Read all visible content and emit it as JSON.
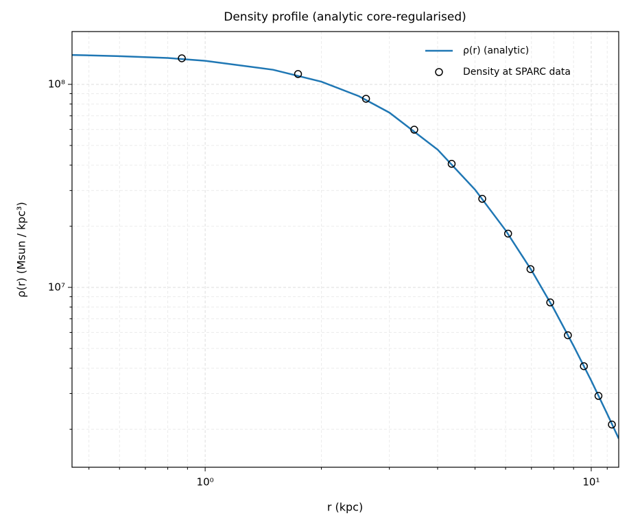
{
  "chart_data": {
    "type": "line",
    "title": "Density profile (analytic core-regularised)",
    "xlabel": "r (kpc)",
    "ylabel": "ρ(r) (Msun / kpc³)",
    "xscale": "log",
    "yscale": "log",
    "xlim": [
      0.452,
      11.78
    ],
    "ylim": [
      1300000,
      182000000
    ],
    "xticks": [
      {
        "value": 1,
        "label": "10⁰"
      },
      {
        "value": 10,
        "label": "10¹"
      }
    ],
    "xminorticks": [
      0.5,
      0.6,
      0.7,
      0.8,
      0.9,
      2,
      3,
      4,
      5,
      6,
      7,
      8,
      9,
      11
    ],
    "yticks": [
      {
        "value": 10000000,
        "label": "10⁷"
      },
      {
        "value": 100000000,
        "label": "10⁸"
      }
    ],
    "yminorticks": [
      2000000,
      3000000,
      4000000,
      5000000,
      6000000,
      7000000,
      8000000,
      9000000,
      20000000,
      30000000,
      40000000,
      50000000,
      60000000,
      70000000,
      80000000,
      90000000
    ],
    "grid": true,
    "legend": "upper right",
    "series": [
      {
        "name": "ρ(r) (analytic)",
        "type": "line",
        "color": "#1f77b4",
        "x": [
          0.452,
          0.6,
          0.8,
          1,
          1.5,
          2,
          2.5,
          3,
          4,
          5,
          6,
          7,
          8,
          9,
          10,
          11,
          11.78
        ],
        "values": [
          139600000,
          137700000,
          134900000,
          130600000,
          118000000,
          103100000,
          87500000,
          72600000,
          47700000,
          30300000,
          19100000,
          12150000,
          7840000,
          5150000,
          3470000,
          2380000,
          1800000
        ]
      },
      {
        "name": "Density at SPARC data",
        "type": "scatter",
        "color": "#000000",
        "x": [
          0.87,
          1.74,
          2.61,
          3.48,
          4.35,
          5.22,
          6.09,
          6.96,
          7.83,
          8.7,
          9.57,
          10.44,
          11.31
        ],
        "values": [
          134400000,
          112400000,
          84900000,
          59800000,
          40600000,
          27300000,
          18400000,
          12300000,
          8430000,
          5810000,
          4090000,
          2920000,
          2110000
        ]
      }
    ]
  }
}
